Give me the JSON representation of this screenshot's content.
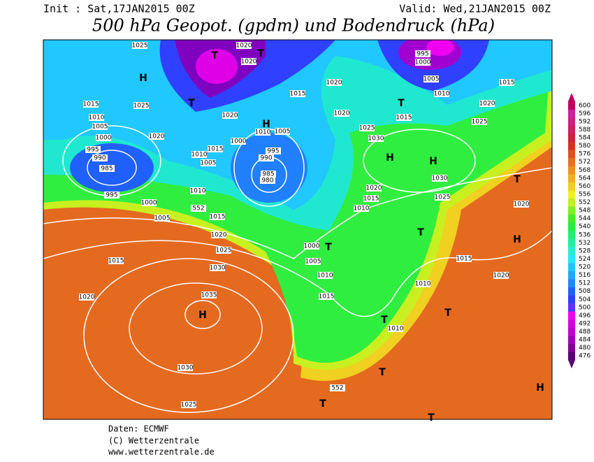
{
  "header": {
    "init": "Init : Sat,17JAN2015 00Z",
    "valid": "Valid: Wed,21JAN2015 00Z",
    "title": "500 hPa Geopot. (gpdm) und Bodendruck (hPa)"
  },
  "footer": [
    "Daten: ECMWF",
    "(C) Wetterzentrale",
    "www.wetterzentrale.de"
  ],
  "colorbar": {
    "levels": [
      476,
      480,
      484,
      488,
      492,
      496,
      500,
      504,
      508,
      512,
      516,
      520,
      524,
      528,
      532,
      536,
      540,
      544,
      548,
      552,
      556,
      560,
      564,
      568,
      572,
      576,
      580,
      584,
      588,
      592,
      596,
      600
    ],
    "colors": [
      "#5a0070",
      "#800090",
      "#a000b8",
      "#c000d0",
      "#d800e0",
      "#f000f0",
      "#6030ff",
      "#3040ff",
      "#2060ff",
      "#2088ff",
      "#20a8ff",
      "#20c8ff",
      "#20e8ff",
      "#20f0d0",
      "#20f0a0",
      "#20f070",
      "#20f040",
      "#40f020",
      "#80f020",
      "#c0f020",
      "#f0f020",
      "#f0d020",
      "#f0b020",
      "#f09020",
      "#e87020",
      "#e05020",
      "#d83020",
      "#d02040",
      "#d02060",
      "#d02080",
      "#d020a0",
      "#c00060"
    ]
  },
  "isobar_labels": [
    1025,
    1020,
    1020,
    995,
    1000,
    1005,
    1010,
    1015,
    1020,
    1025,
    1015,
    1025,
    1010,
    1005,
    1000,
    1020,
    995,
    990,
    985,
    995,
    1000,
    1005,
    1010,
    1015,
    1010,
    1005,
    1000,
    1020,
    1010,
    1005,
    995,
    990,
    985,
    980,
    1015,
    1020,
    1020,
    1025,
    1030,
    1030,
    1020,
    1015,
    1010,
    1025,
    1020,
    1015,
    1020,
    1025,
    1030,
    1035,
    1030,
    1025,
    1015,
    1020,
    1000,
    1005,
    1010,
    1015,
    1010,
    1010,
    1015,
    1020,
    552,
    552,
    1015
  ],
  "centers": [
    "T",
    "T",
    "H",
    "T",
    "H",
    "H",
    "H",
    "T",
    "T",
    "T",
    "T",
    "H",
    "T",
    "T",
    "H",
    "T",
    "T",
    "H",
    "T"
  ]
}
